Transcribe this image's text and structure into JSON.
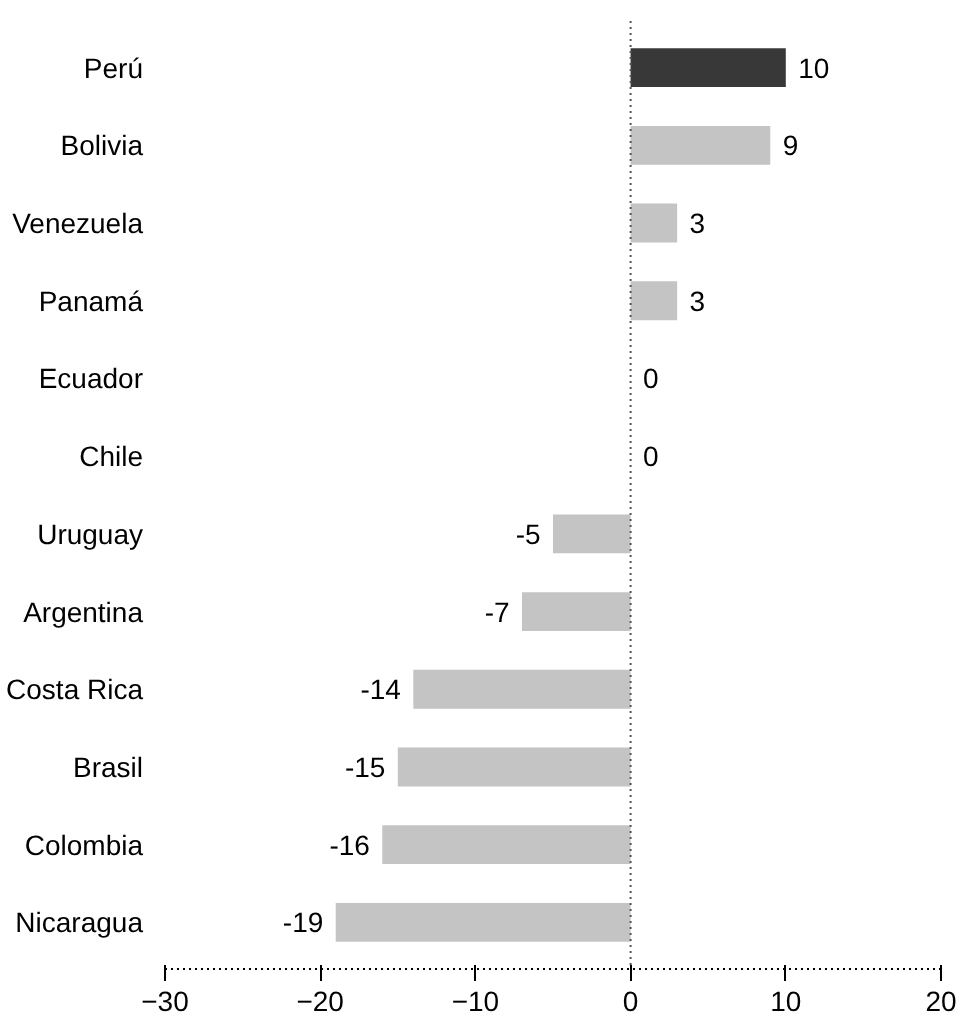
{
  "chart_data": {
    "type": "bar",
    "orientation": "horizontal",
    "categories": [
      "Perú",
      "Bolivia",
      "Venezuela",
      "Panamá",
      "Ecuador",
      "Chile",
      "Uruguay",
      "Argentina",
      "Costa Rica",
      "Brasil",
      "Colombia",
      "Nicaragua"
    ],
    "values": [
      10,
      9,
      3,
      3,
      0,
      0,
      -5,
      -7,
      -14,
      -15,
      -16,
      -19
    ],
    "colors": [
      "#383838",
      "#c4c4c4",
      "#c4c4c4",
      "#c4c4c4",
      "#c4c4c4",
      "#c4c4c4",
      "#c4c4c4",
      "#c4c4c4",
      "#c4c4c4",
      "#c4c4c4",
      "#c4c4c4",
      "#c4c4c4"
    ],
    "xlim": [
      -30,
      20
    ],
    "xticks": [
      -30,
      -20,
      -10,
      0,
      10,
      20
    ],
    "data_labels": true
  }
}
